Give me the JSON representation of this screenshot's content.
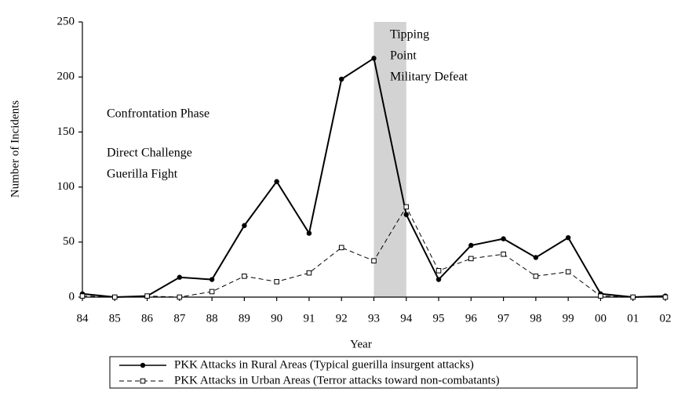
{
  "chart_data": {
    "type": "line",
    "x_label": "Year",
    "y_label": "Number of Incidents",
    "categories": [
      "84",
      "85",
      "86",
      "87",
      "88",
      "89",
      "90",
      "91",
      "92",
      "93",
      "94",
      "95",
      "96",
      "97",
      "98",
      "99",
      "00",
      "01",
      "02"
    ],
    "series": [
      {
        "name": "PKK Attacks in Rural Areas (Typical guerilla insurgent attacks)",
        "color": "#000000",
        "dashed": false,
        "marker": "filled",
        "values": [
          3,
          0,
          1,
          18,
          16,
          65,
          105,
          58,
          198,
          217,
          75,
          16,
          47,
          53,
          36,
          54,
          3,
          0,
          1
        ]
      },
      {
        "name": "PKK Attacks in Urban Areas (Terror attacks toward non-combatants)",
        "color": "#000000",
        "dashed": true,
        "marker": "open",
        "values": [
          1,
          0,
          1,
          0,
          5,
          19,
          14,
          22,
          45,
          33,
          82,
          24,
          35,
          39,
          19,
          23,
          1,
          0,
          0
        ]
      }
    ],
    "shaded_span": [
      "93",
      "94"
    ],
    "shade_color": "#d3d3d3",
    "annotations": [
      "Tipping",
      "Point",
      "Military Defeat",
      "Confrontation Phase",
      "Direct Challenge",
      "Guerilla Fight"
    ],
    "ylim": [
      0,
      250
    ],
    "yticks": [
      0,
      50,
      100,
      150,
      200,
      250
    ]
  }
}
